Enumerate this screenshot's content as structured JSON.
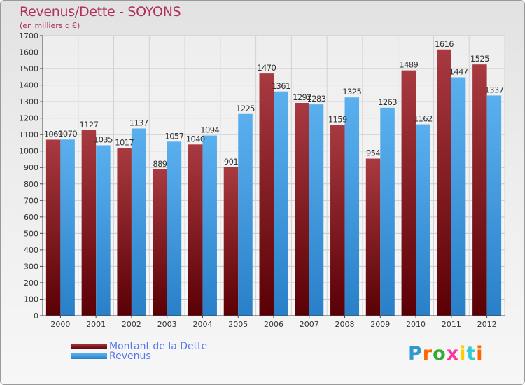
{
  "header": {
    "title": "Revenus/Dette - SOYONS",
    "subtitle": "(en milliers d'€)"
  },
  "legend": {
    "debt_label": "Montant de la Dette",
    "revenue_label": "Revenus"
  },
  "logo": {
    "text": "Proxiti",
    "letters": [
      "P",
      "r",
      "o",
      "x",
      "i",
      "t",
      "i"
    ],
    "colors": [
      "#3399cc",
      "#ff6600",
      "#33aa33",
      "#ff3399",
      "#ffcc00",
      "#33cccc",
      "#ff6600"
    ]
  },
  "colors": {
    "debt_top": "#a83a40",
    "debt_bottom": "#5a0005",
    "revenue_top": "#5ab0ee",
    "revenue_bottom": "#2a80c8",
    "title": "#b03060",
    "legend_text": "#5577ee"
  },
  "chart_data": {
    "type": "bar",
    "title": "Revenus/Dette - SOYONS",
    "subtitle": "(en milliers d'€)",
    "categories": [
      "2000",
      "2001",
      "2002",
      "2003",
      "2004",
      "2005",
      "2006",
      "2007",
      "2008",
      "2009",
      "2010",
      "2011",
      "2012"
    ],
    "series": [
      {
        "name": "Montant de la Dette",
        "values": [
          1069,
          1127,
          1017,
          889,
          1040,
          901,
          1470,
          1292,
          1159,
          954,
          1489,
          1616,
          1525
        ]
      },
      {
        "name": "Revenus",
        "values": [
          1070,
          1035,
          1137,
          1057,
          1094,
          1225,
          1361,
          1283,
          1325,
          1263,
          1162,
          1447,
          1337
        ]
      }
    ],
    "ylim": [
      0,
      1700
    ],
    "yticks": [
      0,
      100,
      200,
      300,
      400,
      500,
      600,
      700,
      800,
      900,
      1000,
      1100,
      1200,
      1300,
      1400,
      1500,
      1600,
      1700
    ],
    "grid": true,
    "legend_position": "bottom-left"
  }
}
